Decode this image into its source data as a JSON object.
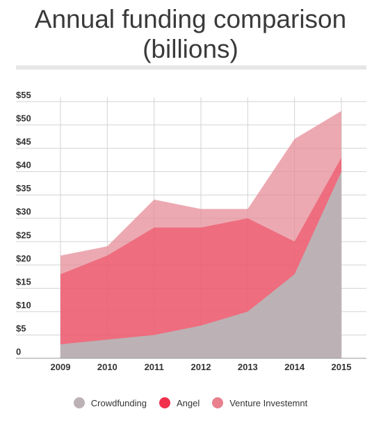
{
  "chart_data": {
    "type": "area",
    "title_lines": [
      "Annual funding comparison",
      "(billions)"
    ],
    "x": [
      "2009",
      "2010",
      "2011",
      "2012",
      "2013",
      "2014",
      "2015"
    ],
    "y_ticks": [
      "0",
      "$5",
      "$10",
      "$15",
      "$20",
      "$25",
      "$30",
      "$35",
      "$40",
      "$45",
      "$50",
      "$55"
    ],
    "ylim": [
      0,
      55
    ],
    "stacked": false,
    "grid": true,
    "legend_position": "bottom",
    "series": [
      {
        "name": "Venture Investemnt",
        "color": "#e68c97",
        "opacity": 0.75,
        "values": [
          22,
          24,
          34,
          32,
          32,
          47,
          53
        ]
      },
      {
        "name": "Angel",
        "color": "#f0465e",
        "opacity": 0.6,
        "values": [
          18,
          22,
          28,
          28,
          30,
          25,
          43
        ]
      },
      {
        "name": "Crowdfunding",
        "color": "#bcb2b5",
        "opacity": 1,
        "values": [
          3,
          4,
          5,
          7,
          10,
          18,
          40
        ]
      }
    ],
    "legend": [
      {
        "name": "Crowdfunding",
        "color": "#bcb2b5"
      },
      {
        "name": "Angel",
        "color": "#f0304d"
      },
      {
        "name": "Venture Investemnt",
        "color": "#e8808d"
      }
    ]
  }
}
